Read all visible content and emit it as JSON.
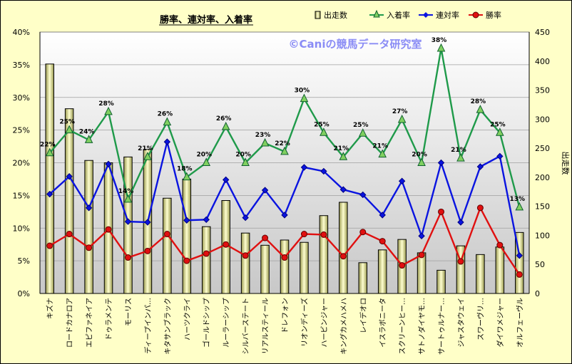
{
  "chart_data": {
    "type": "bar+line",
    "title": "勝率、連対率、入着率",
    "watermark": "©Caniの競馬データ研究室",
    "y2label": "出走数",
    "y_left_range": [
      0,
      40
    ],
    "y_left_ticks": [
      "0%",
      "5%",
      "10%",
      "15%",
      "20%",
      "25%",
      "30%",
      "35%",
      "40%"
    ],
    "y_right_range": [
      0,
      450
    ],
    "y_right_ticks": [
      "0",
      "50",
      "100",
      "150",
      "200",
      "250",
      "300",
      "350",
      "400",
      "450"
    ],
    "grid": true,
    "legend_position": "top-right",
    "categories": [
      "キズナ",
      "ロードカナロア",
      "エピファネイア",
      "ドゥラメンテ",
      "モーリス",
      "ディープインパ…",
      "キタサンブラック",
      "ハーツクライ",
      "ゴールドシップ",
      "ルーラーシップ",
      "シルバーステート",
      "リアルスティール",
      "ドレフォン",
      "リオンディーズ",
      "ハービンジャー",
      "キングカメハメハ",
      "レイデオロ",
      "イスラボニータ",
      "スクリーンヒー…",
      "サトノダイヤモ…",
      "サートゥルナー…",
      "ジャスタウェイ",
      "スワーヴリ…",
      "ダイワメジャー",
      "オルフェーヴル"
    ],
    "series": [
      {
        "name": "出走数",
        "kind": "bar",
        "axis": "right",
        "color": "#e8e8a0",
        "values": [
          395,
          318,
          229,
          225,
          235,
          248,
          164,
          197,
          115,
          160,
          104,
          83,
          92,
          88,
          134,
          157,
          53,
          75,
          93,
          70,
          40,
          82,
          67,
          80,
          105
        ]
      },
      {
        "name": "入着率",
        "kind": "line",
        "axis": "left",
        "color": "#1f9a4a",
        "values": [
          21.5,
          25,
          23.5,
          27.8,
          14.4,
          20.9,
          26.2,
          17.8,
          20,
          25.5,
          20,
          23,
          21.7,
          29.8,
          24.6,
          20.9,
          24.5,
          21.3,
          26.6,
          20,
          37.5,
          20.7,
          28.1,
          24.6,
          13.2
        ],
        "labels": [
          "22%",
          "25%",
          "24%",
          "28%",
          "14%",
          "21%",
          "26%",
          "18%",
          "20%",
          "26%",
          "20%",
          "23%",
          "22%",
          "30%",
          "25%",
          "21%",
          "25%",
          "21%",
          "27%",
          "20%",
          "38%",
          "21%",
          "28%",
          "25%",
          "13%"
        ]
      },
      {
        "name": "連対率",
        "kind": "line",
        "axis": "left",
        "color": "#0a14e0",
        "values": [
          15.2,
          17.9,
          13.1,
          19.8,
          11,
          10.9,
          23.2,
          11.2,
          11.3,
          17.4,
          11.6,
          15.8,
          12,
          19.3,
          18.7,
          15.9,
          15.1,
          12,
          17.2,
          8.8,
          20,
          10.9,
          19.4,
          21,
          5.8
        ]
      },
      {
        "name": "勝率",
        "kind": "line",
        "axis": "left",
        "color": "#e01010",
        "values": [
          7.3,
          9.1,
          7,
          9.8,
          5.5,
          6.5,
          9.1,
          5,
          6.1,
          7.5,
          5.8,
          8.5,
          5.5,
          9.1,
          9,
          5.7,
          9.4,
          8,
          4.3,
          5.9,
          12.5,
          4.9,
          13.1,
          7.4,
          2.9
        ]
      }
    ]
  }
}
